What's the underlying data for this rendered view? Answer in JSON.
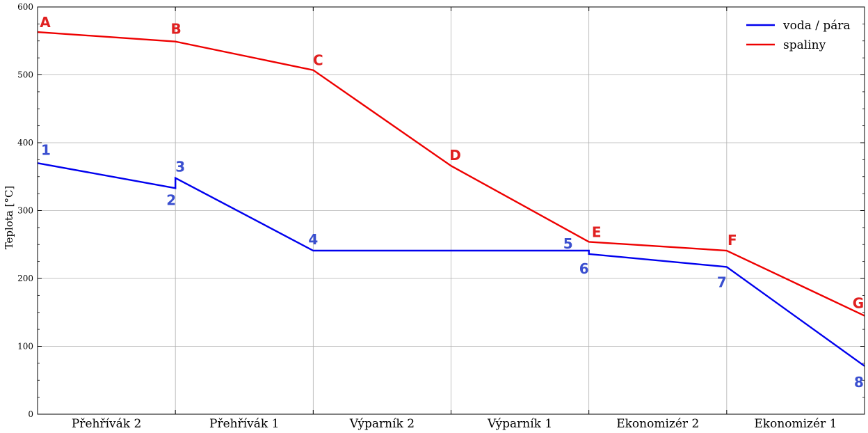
{
  "chart_data": {
    "type": "line",
    "title": "",
    "ylabel": "Teplota [°C]",
    "xlabel": "",
    "xlim": [
      0,
      6
    ],
    "ylim": [
      0,
      600
    ],
    "yticks": [
      "0",
      "100",
      "200",
      "300",
      "400",
      "500",
      "600"
    ],
    "categories": [
      "Přehřívák 2",
      "Přehřívák 1",
      "Výparník 2",
      "Výparník 1",
      "Ekonomizér 2",
      "Ekonomizér 1"
    ],
    "grid": true,
    "legend_position": "top-right",
    "series": [
      {
        "name": "voda / pára",
        "color": "#0000ee",
        "label_color": "#3a4fcf",
        "points": [
          {
            "x": 0,
            "y": 370,
            "label": "1"
          },
          {
            "x": 1,
            "y": 333,
            "label": "2"
          },
          {
            "x": 1,
            "y": 348,
            "label": "3"
          },
          {
            "x": 2,
            "y": 241,
            "label": "4"
          },
          {
            "x": 4,
            "y": 241,
            "label": "5"
          },
          {
            "x": 4,
            "y": 236,
            "label": "6"
          },
          {
            "x": 5,
            "y": 217,
            "label": "7"
          },
          {
            "x": 6,
            "y": 71,
            "label": "8"
          }
        ]
      },
      {
        "name": "spaliny",
        "color": "#ee0000",
        "label_color": "#e02020",
        "points": [
          {
            "x": 0,
            "y": 563,
            "label": "A"
          },
          {
            "x": 1,
            "y": 549,
            "label": "B"
          },
          {
            "x": 2,
            "y": 507,
            "label": "C"
          },
          {
            "x": 3,
            "y": 366,
            "label": "D"
          },
          {
            "x": 4,
            "y": 254,
            "label": "E"
          },
          {
            "x": 5,
            "y": 241,
            "label": "F"
          },
          {
            "x": 6,
            "y": 145,
            "label": "G"
          }
        ]
      }
    ]
  }
}
